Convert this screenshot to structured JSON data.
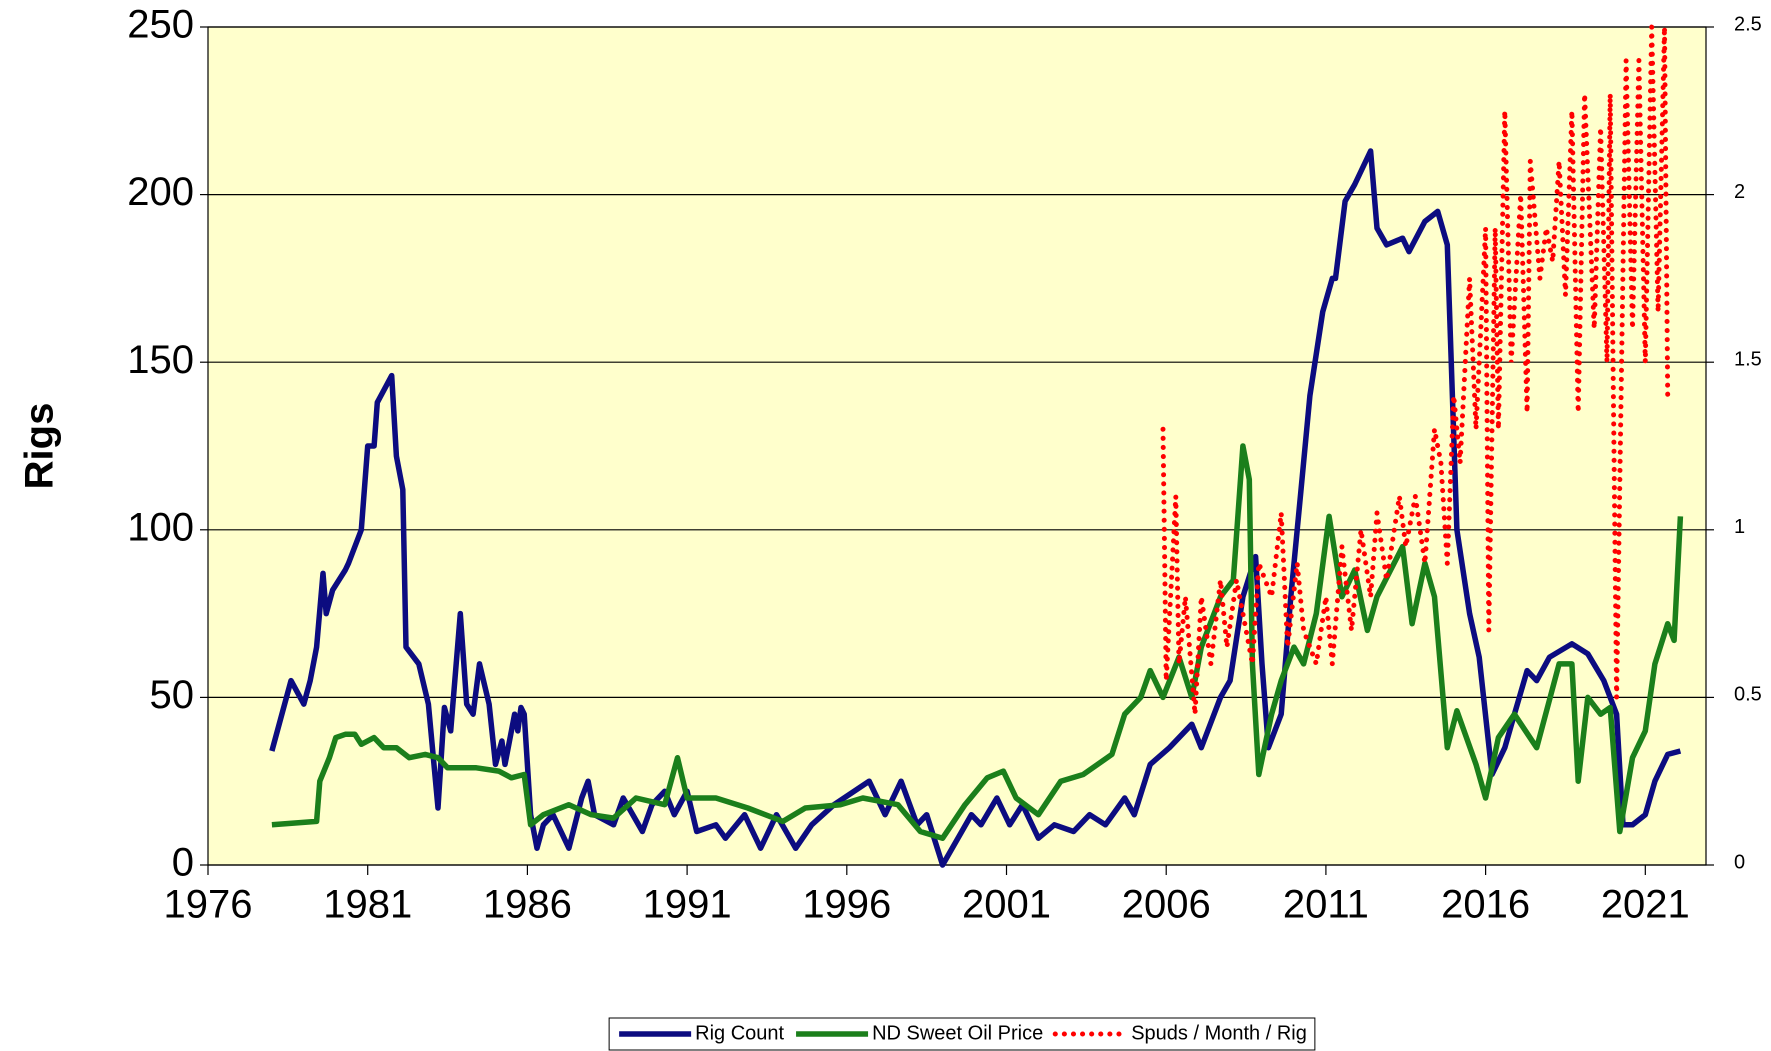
{
  "chart_data": {
    "type": "line",
    "y_label": "Rigs",
    "xlim": [
      1976,
      2022.9
    ],
    "xticks": [
      1976,
      1981,
      1986,
      1991,
      1996,
      2001,
      2006,
      2011,
      2016,
      2021
    ],
    "ylim": [
      0,
      250
    ],
    "yticks": [
      0,
      50,
      100,
      150,
      200,
      250
    ],
    "y2lim": [
      0,
      2.5
    ],
    "y2ticks": [
      0,
      0.5,
      1,
      1.5,
      2,
      2.5
    ],
    "grid": true,
    "legend": "bottom",
    "background": "#ffffcc",
    "series": [
      {
        "name": "Rig Count",
        "color": "#0c0c80",
        "style": "solid",
        "x": [
          1978.0,
          1978.6,
          1979.0,
          1979.2,
          1979.4,
          1979.6,
          1979.7,
          1979.9,
          1980.3,
          1980.4,
          1980.8,
          1981.0,
          1981.2,
          1981.3,
          1981.75,
          1981.9,
          1982.1,
          1982.2,
          1982.6,
          1982.9,
          1983.2,
          1983.4,
          1983.6,
          1983.9,
          1984.1,
          1984.3,
          1984.5,
          1984.8,
          1985.0,
          1985.2,
          1985.3,
          1985.6,
          1985.7,
          1985.8,
          1985.9,
          1986.1,
          1986.3,
          1986.5,
          1986.8,
          1987.3,
          1987.7,
          1987.9,
          1988.1,
          1988.7,
          1989.0,
          1989.6,
          1989.9,
          1990.3,
          1990.6,
          1991.0,
          1991.3,
          1991.9,
          1992.2,
          1992.8,
          1993.3,
          1993.8,
          1994.4,
          1994.9,
          1995.6,
          1996.7,
          1997.2,
          1997.7,
          1998.2,
          1998.5,
          1999.0,
          1999.3,
          1999.9,
          2000.2,
          2000.7,
          2001.1,
          2001.5,
          2002.0,
          2002.5,
          2003.1,
          2003.6,
          2004.1,
          2004.7,
          2005.0,
          2005.5,
          2006.1,
          2006.8,
          2007.1,
          2007.7,
          2008.0,
          2008.4,
          2008.8,
          2009.0,
          2009.2,
          2009.6,
          2009.9,
          2010.2,
          2010.5,
          2010.9,
          2011.2,
          2011.3,
          2011.6,
          2011.9,
          2012.4,
          2012.6,
          2012.9,
          2013.4,
          2013.6,
          2014.1,
          2014.5,
          2014.8,
          2015.1,
          2015.5,
          2015.8,
          2016.2,
          2016.6,
          2016.9,
          2017.3,
          2017.6,
          2018.0,
          2018.7,
          2019.2,
          2019.7,
          2020.1,
          2020.3,
          2020.6,
          2021.0,
          2021.3,
          2021.7,
          2022.1
        ],
        "values": [
          34,
          55,
          48,
          55,
          65,
          87,
          75,
          82,
          88,
          90,
          100,
          125,
          125,
          138,
          146,
          122,
          112,
          65,
          60,
          48,
          17,
          47,
          40,
          75,
          48,
          45,
          60,
          48,
          30,
          37,
          30,
          45,
          40,
          47,
          45,
          15,
          5,
          12,
          15,
          5,
          20,
          25,
          15,
          12,
          20,
          10,
          18,
          22,
          15,
          22,
          10,
          12,
          8,
          15,
          5,
          15,
          5,
          12,
          18,
          25,
          15,
          25,
          12,
          15,
          0,
          5,
          15,
          12,
          20,
          12,
          18,
          8,
          12,
          10,
          15,
          12,
          20,
          15,
          30,
          35,
          42,
          35,
          50,
          55,
          80,
          92,
          60,
          35,
          45,
          80,
          110,
          140,
          165,
          175,
          175,
          198,
          203,
          213,
          190,
          185,
          187,
          183,
          192,
          195,
          185,
          100,
          75,
          62,
          27,
          35,
          45,
          58,
          55,
          62,
          66,
          63,
          55,
          45,
          12,
          12,
          15,
          25,
          33,
          34
        ]
      },
      {
        "name": "ND Sweet Oil Price",
        "color": "#1b7f1b",
        "style": "solid",
        "x": [
          1978.0,
          1979.4,
          1979.5,
          1979.8,
          1980.0,
          1980.3,
          1980.6,
          1980.8,
          1981.2,
          1981.5,
          1981.9,
          1982.3,
          1982.8,
          1983.2,
          1983.5,
          1984.4,
          1985.1,
          1985.5,
          1985.9,
          1986.1,
          1986.5,
          1987.3,
          1988.0,
          1988.7,
          1989.4,
          1990.3,
          1990.7,
          1991.0,
          1991.9,
          1992.9,
          1994.0,
          1994.7,
          1995.8,
          1996.5,
          1997.6,
          1998.3,
          1999.0,
          1999.7,
          2000.4,
          2000.9,
          2001.3,
          2002.0,
          2002.7,
          2003.4,
          2004.3,
          2004.7,
          2005.2,
          2005.5,
          2005.9,
          2006.4,
          2006.8,
          2007.1,
          2007.7,
          2008.1,
          2008.4,
          2008.6,
          2008.7,
          2008.9,
          2009.3,
          2009.6,
          2010.0,
          2010.3,
          2010.7,
          2011.1,
          2011.5,
          2011.9,
          2012.3,
          2012.6,
          2013.4,
          2013.7,
          2014.1,
          2014.4,
          2014.8,
          2015.1,
          2015.7,
          2016.0,
          2016.4,
          2016.9,
          2017.6,
          2018.3,
          2018.7,
          2018.9,
          2019.2,
          2019.6,
          2019.9,
          2020.2,
          2020.6,
          2021.0,
          2021.3,
          2021.7,
          2021.9,
          2022.1
        ],
        "values": [
          12,
          13,
          25,
          32,
          38,
          39,
          39,
          36,
          38,
          35,
          35,
          32,
          33,
          32,
          29,
          29,
          28,
          26,
          27,
          12,
          15,
          18,
          15,
          14,
          20,
          18,
          32,
          20,
          20,
          17,
          13,
          17,
          18,
          20,
          18,
          10,
          8,
          18,
          26,
          28,
          20,
          15,
          25,
          27,
          33,
          45,
          50,
          58,
          50,
          62,
          50,
          65,
          80,
          85,
          125,
          115,
          60,
          27,
          45,
          55,
          65,
          60,
          75,
          104,
          80,
          88,
          70,
          80,
          95,
          72,
          90,
          80,
          35,
          46,
          30,
          20,
          38,
          45,
          35,
          60,
          60,
          25,
          50,
          45,
          47,
          10,
          32,
          40,
          60,
          72,
          67,
          104
        ]
      },
      {
        "name": "Spuds / Month / Rig",
        "color": "#ff0000",
        "style": "dotted",
        "axis": "y2",
        "x": [
          2005.9,
          2006.0,
          2006.3,
          2006.4,
          2006.6,
          2006.9,
          2007.1,
          2007.4,
          2007.7,
          2007.9,
          2008.2,
          2008.5,
          2008.7,
          2008.9,
          2009.3,
          2009.6,
          2009.8,
          2010.1,
          2010.3,
          2010.7,
          2011.0,
          2011.2,
          2011.5,
          2011.8,
          2012.1,
          2012.4,
          2012.6,
          2012.9,
          2013.3,
          2013.5,
          2013.8,
          2014.1,
          2014.4,
          2014.6,
          2014.8,
          2015.0,
          2015.2,
          2015.5,
          2015.7,
          2016.0,
          2016.1,
          2016.3,
          2016.4,
          2016.6,
          2016.8,
          2017.1,
          2017.3,
          2017.4,
          2017.7,
          2017.9,
          2018.1,
          2018.3,
          2018.5,
          2018.7,
          2018.9,
          2019.1,
          2019.4,
          2019.6,
          2019.8,
          2019.9,
          2020.1,
          2020.4,
          2020.6,
          2020.8,
          2021.0,
          2021.2,
          2021.4,
          2021.6,
          2021.7
        ],
        "values": [
          1.3,
          0.55,
          1.1,
          0.6,
          0.8,
          0.45,
          0.8,
          0.6,
          0.85,
          0.65,
          0.85,
          0.7,
          0.6,
          0.9,
          0.8,
          1.05,
          0.65,
          0.9,
          0.7,
          0.6,
          0.8,
          0.6,
          0.95,
          0.7,
          1.0,
          0.8,
          1.05,
          0.85,
          1.1,
          0.95,
          1.1,
          0.9,
          1.3,
          1.2,
          0.9,
          1.4,
          1.2,
          1.75,
          1.3,
          1.9,
          0.7,
          1.9,
          1.3,
          2.25,
          1.5,
          2.0,
          1.35,
          2.1,
          1.75,
          1.9,
          1.8,
          2.1,
          1.7,
          2.25,
          1.35,
          2.3,
          1.6,
          2.2,
          1.5,
          2.3,
          0.5,
          2.4,
          1.6,
          2.4,
          1.5,
          2.5,
          1.65,
          2.5,
          1.4
        ]
      }
    ]
  }
}
